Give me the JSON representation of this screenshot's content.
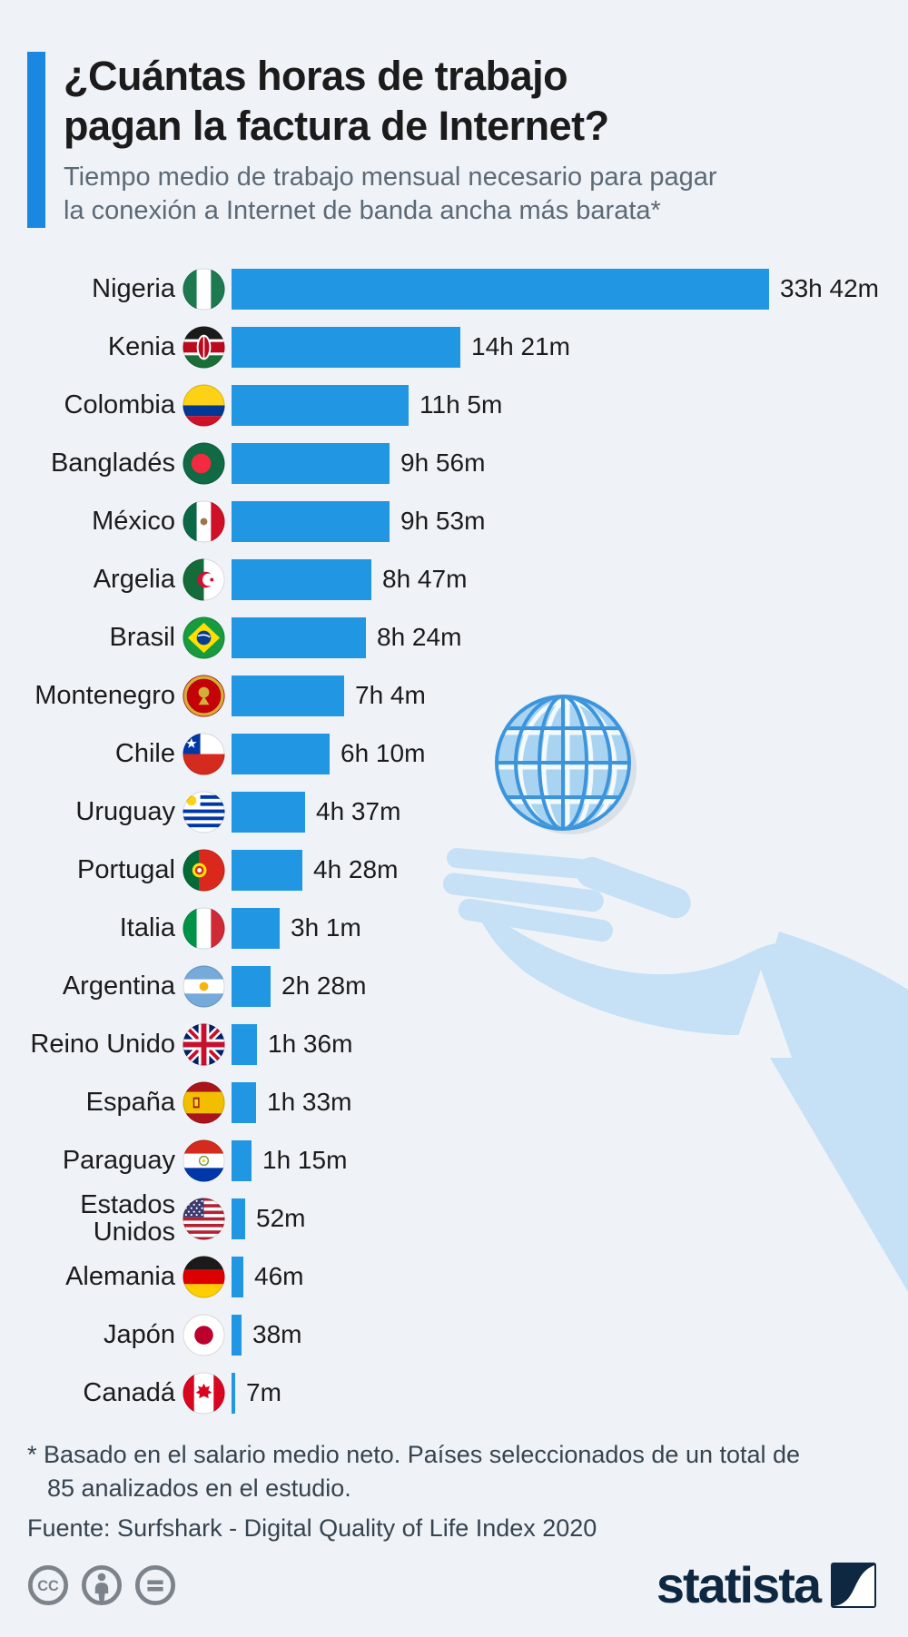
{
  "header": {
    "title_line1": "¿Cuántas horas de trabajo",
    "title_line2": "pagan la factura de Internet?",
    "subtitle_line1": "Tiempo medio de trabajo mensual necesario para pagar",
    "subtitle_line2": "la conexión a Internet de banda ancha más barata*"
  },
  "chart_data": {
    "type": "bar",
    "orientation": "horizontal",
    "title": "¿Cuántas horas de trabajo pagan la factura de Internet?",
    "subtitle": "Tiempo medio de trabajo mensual necesario para pagar la conexión a Internet de banda ancha más barata*",
    "unit": "work time (hours and minutes) per month",
    "bar_color": "#2196e3",
    "max_minutes": 2022,
    "rows": [
      {
        "country": "Nigeria",
        "flag": "nigeria",
        "value_label": "33h 42m",
        "minutes": 2022
      },
      {
        "country": "Kenia",
        "flag": "kenia",
        "value_label": "14h 21m",
        "minutes": 861
      },
      {
        "country": "Colombia",
        "flag": "colombia",
        "value_label": "11h 5m",
        "minutes": 665
      },
      {
        "country": "Bangladés",
        "flag": "banglades",
        "value_label": "9h 56m",
        "minutes": 596
      },
      {
        "country": "México",
        "flag": "mexico",
        "value_label": "9h 53m",
        "minutes": 593
      },
      {
        "country": "Argelia",
        "flag": "argelia",
        "value_label": "8h 47m",
        "minutes": 527
      },
      {
        "country": "Brasil",
        "flag": "brasil",
        "value_label": "8h 24m",
        "minutes": 504
      },
      {
        "country": "Montenegro",
        "flag": "montenegro",
        "value_label": "7h 4m",
        "minutes": 424
      },
      {
        "country": "Chile",
        "flag": "chile",
        "value_label": "6h 10m",
        "minutes": 370
      },
      {
        "country": "Uruguay",
        "flag": "uruguay",
        "value_label": "4h 37m",
        "minutes": 277
      },
      {
        "country": "Portugal",
        "flag": "portugal",
        "value_label": "4h 28m",
        "minutes": 268
      },
      {
        "country": "Italia",
        "flag": "italia",
        "value_label": "3h 1m",
        "minutes": 181
      },
      {
        "country": "Argentina",
        "flag": "argentina",
        "value_label": "2h 28m",
        "minutes": 148
      },
      {
        "country": "Reino Unido",
        "flag": "reino-unido",
        "value_label": "1h 36m",
        "minutes": 96
      },
      {
        "country": "España",
        "flag": "espana",
        "value_label": "1h 33m",
        "minutes": 93
      },
      {
        "country": "Paraguay",
        "flag": "paraguay",
        "value_label": "1h 15m",
        "minutes": 75
      },
      {
        "country": "Estados\nUnidos",
        "flag": "estados-unidos",
        "value_label": "52m",
        "minutes": 52
      },
      {
        "country": "Alemania",
        "flag": "alemania",
        "value_label": "46m",
        "minutes": 46
      },
      {
        "country": "Japón",
        "flag": "japon",
        "value_label": "38m",
        "minutes": 38
      },
      {
        "country": "Canadá",
        "flag": "canada",
        "value_label": "7m",
        "minutes": 7
      }
    ]
  },
  "notes": {
    "footnote_line1": "* Basado en el salario medio neto. Países seleccionados de un total de",
    "footnote_line2": "85 analizados en el estudio.",
    "source": "Fuente: Surfshark - Digital Quality of Life Index 2020"
  },
  "footer": {
    "license_icons": [
      "cc-icon",
      "attribution-icon",
      "no-derivatives-icon"
    ],
    "brand": "statista"
  }
}
